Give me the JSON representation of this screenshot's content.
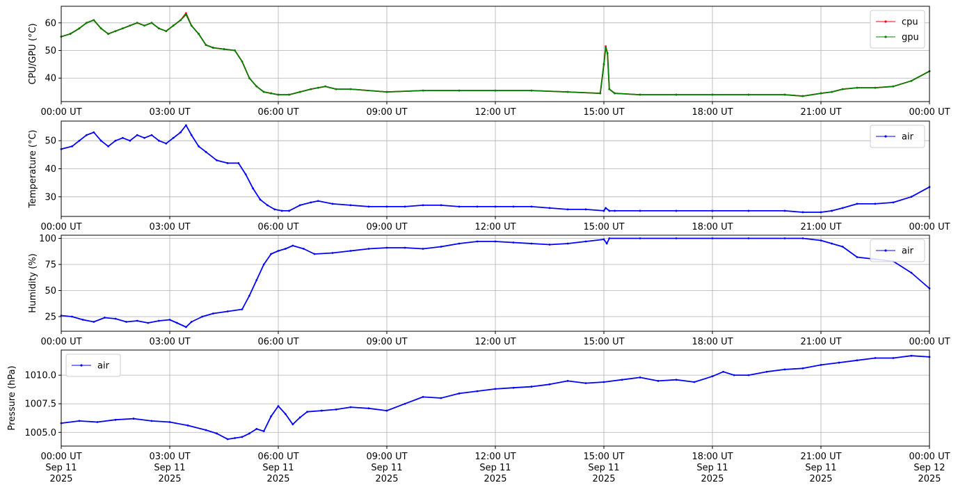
{
  "chart_data": [
    {
      "type": "line",
      "ylabel": "CPU/GPU (°C)",
      "ylim": [
        31.5,
        66
      ],
      "yticks": [
        40,
        50,
        60
      ],
      "ytick_labels": [
        "40",
        "50",
        "60"
      ],
      "xlim": [
        0,
        24
      ],
      "xticks": [
        0,
        3,
        6,
        9,
        12,
        15,
        18,
        21,
        24
      ],
      "xtick_labels": [
        "00:00 UT",
        "03:00 UT",
        "06:00 UT",
        "09:00 UT",
        "12:00 UT",
        "15:00 UT",
        "18:00 UT",
        "21:00 UT",
        "00:00 UT"
      ],
      "grid": true,
      "legend": "top-right",
      "series": [
        {
          "name": "cpu",
          "color": "#ff0000",
          "x": [
            0,
            0.25,
            0.5,
            0.7,
            0.9,
            1.1,
            1.3,
            1.5,
            1.7,
            1.9,
            2.1,
            2.3,
            2.5,
            2.7,
            2.9,
            3.1,
            3.3,
            3.45,
            3.6,
            3.8,
            4.0,
            4.2,
            4.5,
            4.8,
            5.0,
            5.2,
            5.4,
            5.6,
            5.8,
            6.0,
            6.3,
            6.6,
            6.9,
            7.1,
            7.3,
            7.6,
            8.0,
            9.0,
            10.0,
            11.0,
            12.0,
            13.0,
            14.0,
            14.9,
            15.0,
            15.05,
            15.1,
            15.15,
            15.3,
            16.0,
            17.0,
            18.0,
            19.0,
            20.0,
            20.5,
            21.0,
            21.3,
            21.6,
            22.0,
            22.5,
            23.0,
            23.5,
            24.0
          ],
          "values": [
            55,
            56,
            58,
            60,
            61,
            58,
            56,
            57,
            58,
            59,
            60,
            59,
            60,
            58,
            57,
            59,
            61,
            63.5,
            59,
            56,
            52,
            51,
            50.5,
            50,
            46,
            40,
            37,
            35,
            34.5,
            34,
            34,
            35,
            36,
            36.5,
            37,
            36,
            36,
            35,
            35.5,
            35.5,
            35.5,
            35.5,
            35,
            34.5,
            45,
            51.5,
            49,
            36,
            34.5,
            34,
            34,
            34,
            34,
            34,
            33.5,
            34.5,
            35,
            36,
            36.5,
            36.5,
            37,
            39,
            42.5
          ]
        },
        {
          "name": "gpu",
          "color": "#008000",
          "x": [
            0,
            0.25,
            0.5,
            0.7,
            0.9,
            1.1,
            1.3,
            1.5,
            1.7,
            1.9,
            2.1,
            2.3,
            2.5,
            2.7,
            2.9,
            3.1,
            3.3,
            3.45,
            3.6,
            3.8,
            4.0,
            4.2,
            4.5,
            4.8,
            5.0,
            5.2,
            5.4,
            5.6,
            5.8,
            6.0,
            6.3,
            6.6,
            6.9,
            7.1,
            7.3,
            7.6,
            8.0,
            9.0,
            10.0,
            11.0,
            12.0,
            13.0,
            14.0,
            14.9,
            15.0,
            15.05,
            15.1,
            15.15,
            15.3,
            16.0,
            17.0,
            18.0,
            19.0,
            20.0,
            20.5,
            21.0,
            21.3,
            21.6,
            22.0,
            22.5,
            23.0,
            23.5,
            24.0
          ],
          "values": [
            55,
            56,
            58,
            60,
            61,
            58,
            56,
            57,
            58,
            59,
            60,
            59,
            60,
            58,
            57,
            59,
            61,
            63,
            59,
            56,
            52,
            51,
            50.5,
            50,
            46,
            40,
            37,
            35,
            34.5,
            34,
            34,
            35,
            36,
            36.5,
            37,
            36,
            36,
            35,
            35.5,
            35.5,
            35.5,
            35.5,
            35,
            34.5,
            45,
            51,
            49,
            36,
            34.5,
            34,
            34,
            34,
            34,
            34,
            33.5,
            34.5,
            35,
            36,
            36.5,
            36.5,
            37,
            39,
            42.5
          ]
        }
      ]
    },
    {
      "type": "line",
      "ylabel": "Temperature (°C)",
      "ylim": [
        23,
        57
      ],
      "yticks": [
        30,
        40,
        50
      ],
      "ytick_labels": [
        "30",
        "40",
        "50"
      ],
      "xlim": [
        0,
        24
      ],
      "xticks": [
        0,
        3,
        6,
        9,
        12,
        15,
        18,
        21,
        24
      ],
      "xtick_labels": [
        "00:00 UT",
        "03:00 UT",
        "06:00 UT",
        "09:00 UT",
        "12:00 UT",
        "15:00 UT",
        "18:00 UT",
        "21:00 UT",
        "00:00 UT"
      ],
      "grid": true,
      "legend": "top-right",
      "series": [
        {
          "name": "air",
          "color": "#0000ff",
          "x": [
            0,
            0.3,
            0.5,
            0.7,
            0.9,
            1.1,
            1.3,
            1.5,
            1.7,
            1.9,
            2.1,
            2.3,
            2.5,
            2.7,
            2.9,
            3.1,
            3.3,
            3.45,
            3.6,
            3.8,
            4.0,
            4.3,
            4.6,
            4.9,
            5.1,
            5.3,
            5.5,
            5.7,
            5.9,
            6.1,
            6.3,
            6.6,
            6.9,
            7.1,
            7.5,
            8,
            8.5,
            9,
            9.5,
            10,
            10.5,
            11,
            11.5,
            12,
            12.5,
            13,
            13.5,
            14,
            14.5,
            15,
            15.05,
            15.15,
            15.3,
            16,
            17,
            18,
            19,
            20,
            20.5,
            21,
            21.3,
            21.6,
            22,
            22.5,
            23,
            23.5,
            24
          ],
          "values": [
            47,
            48,
            50,
            52,
            53,
            50,
            48,
            50,
            51,
            50,
            52,
            51,
            52,
            50,
            49,
            51,
            53,
            55.5,
            52,
            48,
            46,
            43,
            42,
            42,
            38,
            33,
            29,
            27,
            25.5,
            25,
            25,
            27,
            28,
            28.5,
            27.5,
            27,
            26.5,
            26.5,
            26.5,
            27,
            27,
            26.5,
            26.5,
            26.5,
            26.5,
            26.5,
            26,
            25.5,
            25.5,
            25,
            26,
            25,
            25,
            25,
            25,
            25,
            25,
            25,
            24.5,
            24.5,
            25,
            26,
            27.5,
            27.5,
            28,
            30,
            33.5
          ]
        }
      ]
    },
    {
      "type": "line",
      "ylabel": "Humidity (%)",
      "ylim": [
        11,
        103
      ],
      "yticks": [
        25,
        50,
        75,
        100
      ],
      "ytick_labels": [
        "25",
        "50",
        "75",
        "100"
      ],
      "xlim": [
        0,
        24
      ],
      "xticks": [
        0,
        3,
        6,
        9,
        12,
        15,
        18,
        21,
        24
      ],
      "xtick_labels": [
        "00:00 UT",
        "03:00 UT",
        "06:00 UT",
        "09:00 UT",
        "12:00 UT",
        "15:00 UT",
        "18:00 UT",
        "21:00 UT",
        "00:00 UT"
      ],
      "grid": true,
      "legend": "top-right",
      "series": [
        {
          "name": "air",
          "color": "#0000ff",
          "x": [
            0,
            0.3,
            0.6,
            0.9,
            1.2,
            1.5,
            1.8,
            2.1,
            2.4,
            2.7,
            3.0,
            3.2,
            3.45,
            3.6,
            3.9,
            4.2,
            4.6,
            5.0,
            5.2,
            5.4,
            5.6,
            5.8,
            6.0,
            6.2,
            6.4,
            6.7,
            7,
            7.5,
            8,
            8.5,
            9,
            9.5,
            10,
            10.5,
            11,
            11.5,
            12,
            12.5,
            13,
            13.5,
            14,
            14.5,
            15,
            15.08,
            15.15,
            16,
            17,
            18,
            19,
            20,
            20.5,
            21,
            21.3,
            21.6,
            22,
            22.5,
            23,
            23.5,
            24
          ],
          "values": [
            26,
            25,
            22,
            20,
            24,
            23,
            20,
            21,
            19,
            21,
            22,
            19,
            15,
            20,
            25,
            28,
            30,
            32,
            45,
            60,
            75,
            85,
            88,
            90,
            93,
            90,
            85,
            86,
            88,
            90,
            91,
            91,
            90,
            92,
            95,
            97,
            97,
            96,
            95,
            94,
            95,
            97,
            99,
            95,
            100,
            100,
            100,
            100,
            100,
            100,
            100,
            98,
            95,
            92,
            82,
            80,
            78,
            67,
            52
          ]
        }
      ]
    },
    {
      "type": "line",
      "ylabel": "Pressure (hPa)",
      "ylim": [
        1003.8,
        1012.2
      ],
      "yticks": [
        1005.0,
        1007.5,
        1010.0
      ],
      "ytick_labels": [
        "1005.0",
        "1007.5",
        "1010.0"
      ],
      "xlim": [
        0,
        24
      ],
      "xticks": [
        0,
        3,
        6,
        9,
        12,
        15,
        18,
        21,
        24
      ],
      "xtick_labels": [
        "00:00 UT",
        "03:00 UT",
        "06:00 UT",
        "09:00 UT",
        "12:00 UT",
        "15:00 UT",
        "18:00 UT",
        "21:00 UT",
        "00:00 UT"
      ],
      "xtick_sublabels": [
        "Sep 11",
        "Sep 11",
        "Sep 11",
        "Sep 11",
        "Sep 11",
        "Sep 11",
        "Sep 11",
        "Sep 11",
        "Sep 12"
      ],
      "xtick_sublabels2": [
        "2025",
        "2025",
        "2025",
        "2025",
        "2025",
        "2025",
        "2025",
        "2025",
        "2025"
      ],
      "grid": true,
      "legend": "top-left",
      "series": [
        {
          "name": "air",
          "color": "#0000ff",
          "x": [
            0,
            0.5,
            1,
            1.5,
            2,
            2.5,
            3,
            3.5,
            4,
            4.3,
            4.6,
            4.8,
            5.0,
            5.2,
            5.4,
            5.6,
            5.8,
            6.0,
            6.2,
            6.4,
            6.6,
            6.8,
            7.2,
            7.6,
            8,
            8.5,
            9,
            9.5,
            10,
            10.5,
            11,
            11.5,
            12,
            12.5,
            13,
            13.5,
            14,
            14.5,
            15,
            15.5,
            16,
            16.5,
            17,
            17.5,
            18,
            18.3,
            18.6,
            19,
            19.5,
            20,
            20.5,
            21,
            21.5,
            22,
            22.5,
            23,
            23.5,
            24
          ],
          "values": [
            1005.8,
            1006.0,
            1005.9,
            1006.1,
            1006.2,
            1006.0,
            1005.9,
            1005.6,
            1005.2,
            1004.9,
            1004.4,
            1004.5,
            1004.6,
            1004.9,
            1005.3,
            1005.1,
            1006.4,
            1007.3,
            1006.6,
            1005.7,
            1006.3,
            1006.8,
            1006.9,
            1007.0,
            1007.2,
            1007.1,
            1006.9,
            1007.5,
            1008.1,
            1008.0,
            1008.4,
            1008.6,
            1008.8,
            1008.9,
            1009.0,
            1009.2,
            1009.5,
            1009.3,
            1009.4,
            1009.6,
            1009.8,
            1009.5,
            1009.6,
            1009.4,
            1009.9,
            1010.3,
            1010.0,
            1010.0,
            1010.3,
            1010.5,
            1010.6,
            1010.9,
            1011.1,
            1011.3,
            1011.5,
            1011.5,
            1011.7,
            1011.6
          ]
        }
      ]
    }
  ]
}
